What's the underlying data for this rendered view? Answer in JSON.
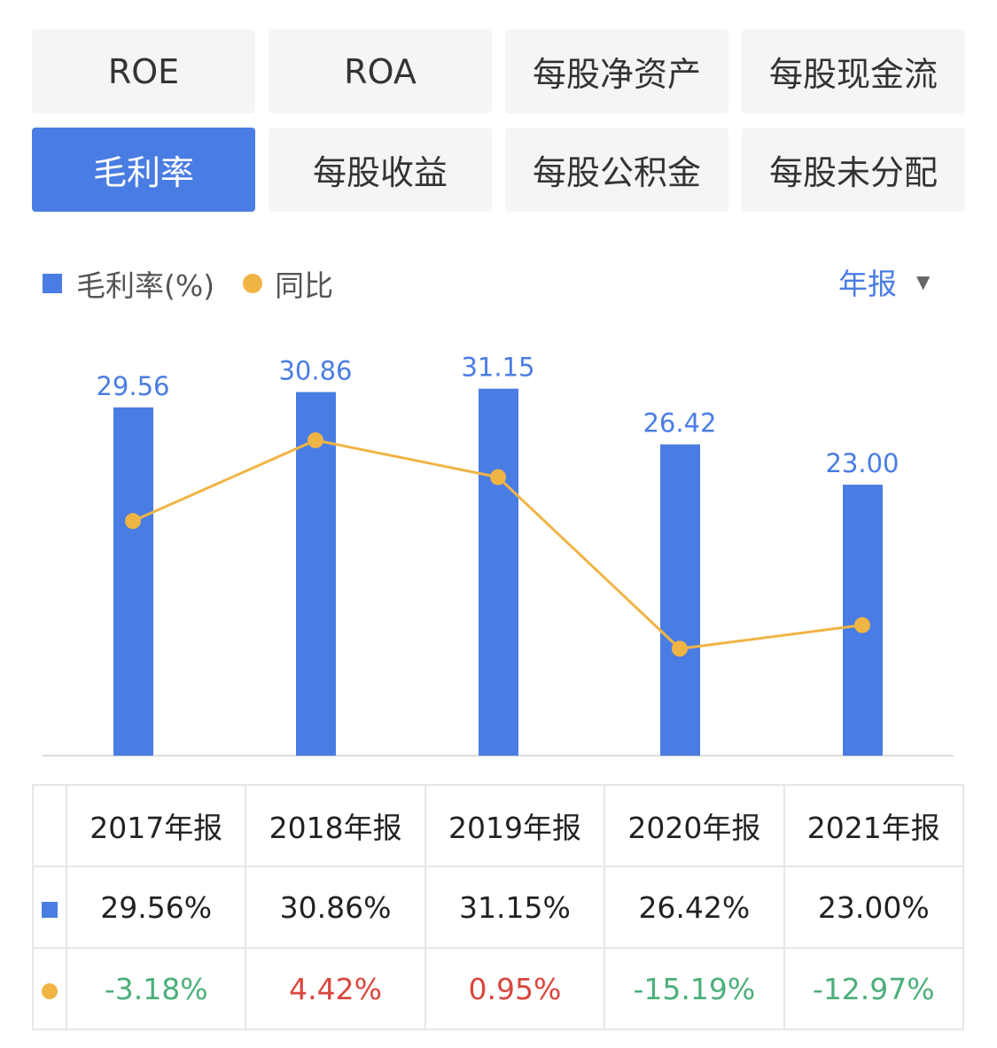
{
  "tabs": [
    {
      "label": "ROE",
      "active": false
    },
    {
      "label": "ROA",
      "active": false
    },
    {
      "label": "每股净资产",
      "active": false
    },
    {
      "label": "每股现金流",
      "active": false
    },
    {
      "label": "毛利率",
      "active": true
    },
    {
      "label": "每股收益",
      "active": false
    },
    {
      "label": "每股公积金",
      "active": false
    },
    {
      "label": "每股未分配",
      "active": false
    }
  ],
  "legend": {
    "bar": "毛利率(%)",
    "line": "同比"
  },
  "period_select": {
    "value": "年报",
    "icon": "triangle-down-icon"
  },
  "colors": {
    "bar": "#4a7de3",
    "line": "#f0b445",
    "positive": "#d9463e",
    "negative": "#4caf7a"
  },
  "chart_data": {
    "type": "bar+line",
    "categories": [
      "2017年报",
      "2018年报",
      "2019年报",
      "2020年报",
      "2021年报"
    ],
    "series": [
      {
        "name": "毛利率(%)",
        "type": "bar",
        "values": [
          29.56,
          30.86,
          31.15,
          26.42,
          23.0
        ],
        "labels": [
          "29.56",
          "30.86",
          "31.15",
          "26.42",
          "23.00"
        ]
      },
      {
        "name": "同比",
        "type": "line",
        "values": [
          -3.18,
          4.42,
          0.95,
          -15.19,
          -12.97
        ]
      }
    ],
    "grid": false,
    "legend": "top-left"
  },
  "table": {
    "headers": [
      "2017年报",
      "2018年报",
      "2019年报",
      "2020年报",
      "2021年报"
    ],
    "bar_row": [
      "29.56%",
      "30.86%",
      "31.15%",
      "26.42%",
      "23.00%"
    ],
    "line_row": [
      "-3.18%",
      "4.42%",
      "0.95%",
      "-15.19%",
      "-12.97%"
    ]
  }
}
